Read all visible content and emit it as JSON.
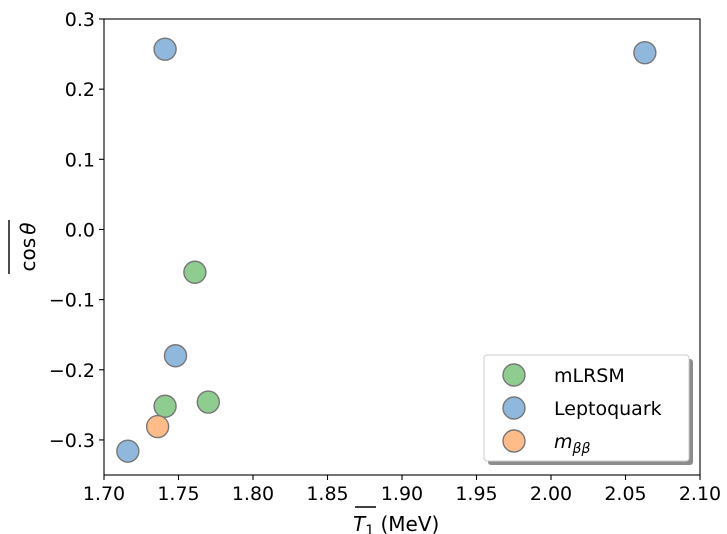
{
  "chart_data": {
    "type": "scatter",
    "title": "",
    "xlabel": "T₁ (MeV)",
    "ylabel": "cos θ",
    "xlim": [
      1.7,
      2.1
    ],
    "ylim": [
      -0.35,
      0.3
    ],
    "xticks": [
      1.7,
      1.75,
      1.8,
      1.85,
      1.9,
      1.95,
      2.0,
      2.05,
      2.1
    ],
    "xtick_labels": [
      "1.70",
      "1.75",
      "1.80",
      "1.85",
      "1.90",
      "1.95",
      "2.00",
      "2.05",
      "2.10"
    ],
    "yticks": [
      0.3,
      0.2,
      0.1,
      0.0,
      -0.1,
      -0.2,
      -0.3
    ],
    "ytick_labels": [
      "0.3",
      "0.2",
      "0.1",
      "0.0",
      "−0.1",
      "−0.2",
      "−0.3"
    ],
    "grid": false,
    "legend_position": "bottom-right",
    "series": [
      {
        "name": "mLRSM",
        "color": "#8fcc8f",
        "points": [
          [
            1.761,
            -0.061
          ],
          [
            1.741,
            -0.252
          ],
          [
            1.77,
            -0.246
          ]
        ]
      },
      {
        "name": "Leptoquark",
        "color": "#8fb8dc",
        "points": [
          [
            1.741,
            0.257
          ],
          [
            2.063,
            0.252
          ],
          [
            1.748,
            -0.18
          ],
          [
            1.716,
            -0.316
          ]
        ]
      },
      {
        "name": "m_ββ",
        "color": "#ffbb88",
        "points": [
          [
            1.736,
            -0.281
          ]
        ]
      }
    ]
  }
}
